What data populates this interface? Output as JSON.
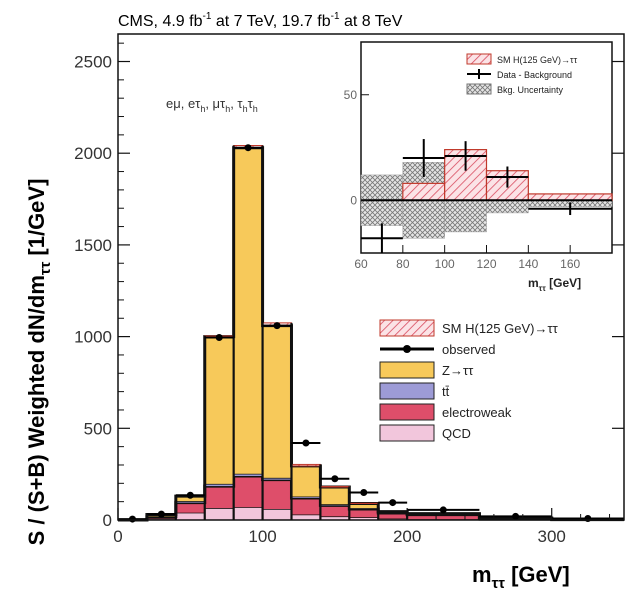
{
  "chart_data": {
    "type": "histogram",
    "title_lines": [
      "CMS,  4.9 fb",
      "-1",
      " at 7 TeV, 19.7 fb",
      "-1",
      " at 8 TeV"
    ],
    "ylabel": "S / (S+B) Weighted dN/dm",
    "ylabel_sub": "ττ",
    "ylabel_unit": "  [1/GeV]",
    "xlabel": "m",
    "xlabel_sub": "ττ",
    "xlabel_unit": "  [GeV]",
    "channels": "eμ, eτ",
    "channels_parts": [
      "eμ, eτ",
      "h",
      ", μτ",
      "h",
      ", τ",
      "h",
      "τ",
      "h"
    ],
    "xlim": [
      0,
      350
    ],
    "ylim": [
      0,
      2650
    ],
    "xticks": [
      0,
      100,
      200,
      300
    ],
    "xtick_labels": [
      "0",
      "100",
      "200",
      "300"
    ],
    "yticks": [
      0,
      500,
      1000,
      1500,
      2000,
      2500
    ],
    "ytick_labels": [
      "0",
      "500",
      "1000",
      "1500",
      "2000",
      "2500"
    ],
    "bin_edges": [
      0,
      20,
      40,
      60,
      80,
      100,
      120,
      140,
      160,
      180,
      200,
      250,
      300,
      350
    ],
    "series": [
      {
        "name": "QCD",
        "color": "#f2c6dc",
        "values": [
          0,
          8,
          40,
          65,
          70,
          60,
          30,
          20,
          15,
          8,
          4,
          1,
          0
        ]
      },
      {
        "name": "electroweak",
        "color": "#de4e6a",
        "values": [
          0,
          10,
          55,
          120,
          170,
          160,
          90,
          60,
          45,
          30,
          25,
          8,
          2
        ]
      },
      {
        "name": "tt̄",
        "color": "#9d9bd6",
        "values": [
          0,
          2,
          8,
          12,
          12,
          10,
          8,
          6,
          5,
          3,
          3,
          2,
          1
        ]
      },
      {
        "name": "Z→ττ",
        "color": "#f7c95a",
        "values": [
          0,
          10,
          27,
          803,
          1778,
          830,
          167,
          94,
          25,
          5,
          3,
          0,
          0
        ]
      },
      {
        "name": "SM H(125 GeV)→ττ",
        "color": "#d97a8a",
        "values": [
          0,
          0,
          0,
          3,
          12,
          15,
          8,
          3,
          1,
          0,
          0,
          0,
          0
        ]
      }
    ],
    "observed": {
      "name": "observed",
      "x": [
        10,
        30,
        50,
        70,
        90,
        110,
        130,
        150,
        170,
        190,
        225,
        275,
        325
      ],
      "y": [
        5,
        32,
        135,
        995,
        2030,
        1060,
        420,
        225,
        150,
        95,
        55,
        20,
        8
      ]
    },
    "legend": [
      "SM H(125 GeV)→ττ",
      "observed",
      "Z→ττ",
      "tt̄",
      "electroweak",
      "QCD"
    ],
    "inset": {
      "type": "histogram",
      "xlabel": "m",
      "xlabel_sub": "ττ",
      "xlabel_unit": " [GeV]",
      "xlim": [
        60,
        180
      ],
      "ylim": [
        -25,
        75
      ],
      "xticks": [
        60,
        80,
        100,
        120,
        140,
        160
      ],
      "xtick_labels": [
        "60",
        "80",
        "100",
        "120",
        "140",
        "160"
      ],
      "yticks": [
        0,
        50
      ],
      "ytick_labels": [
        "0",
        "50"
      ],
      "bin_edges": [
        60,
        80,
        100,
        120,
        140,
        180
      ],
      "signal_values": [
        0,
        8,
        24,
        14,
        3
      ],
      "uncertainty_values": [
        12,
        18,
        15,
        6,
        3
      ],
      "data_minus_background": {
        "x": [
          70,
          90,
          110,
          130,
          160
        ],
        "y": [
          -18,
          20,
          21,
          11,
          -4
        ],
        "yerr": [
          7,
          9,
          7,
          5,
          3
        ],
        "xerr": [
          10,
          10,
          10,
          10,
          20
        ]
      },
      "legend": [
        "SM H(125 GeV)→ττ",
        "Data - Background",
        "Bkg. Uncertainty"
      ]
    }
  }
}
